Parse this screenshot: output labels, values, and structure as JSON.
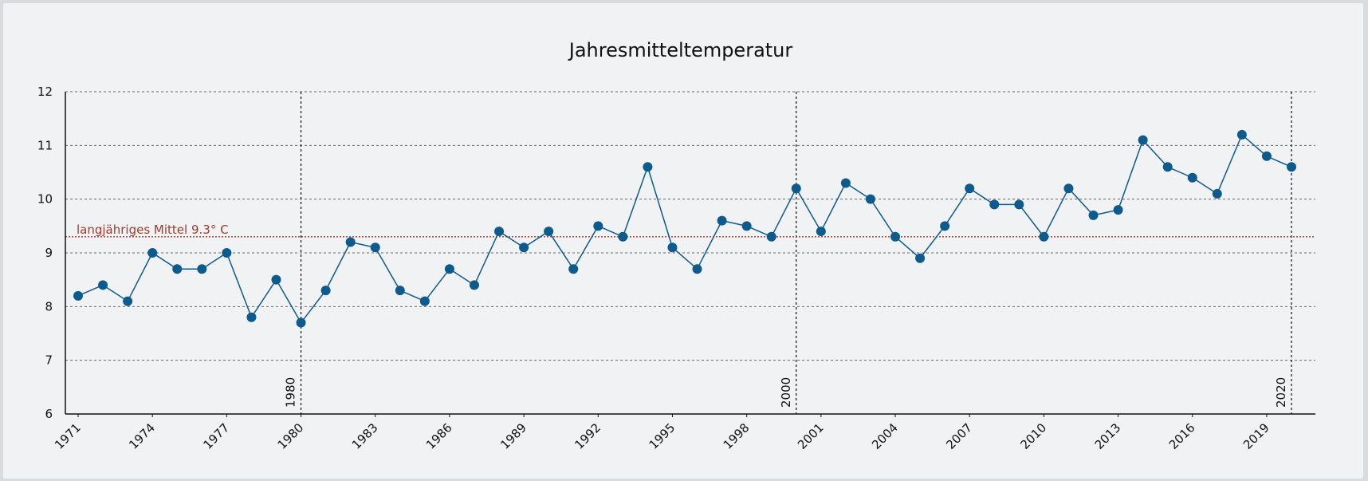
{
  "chart_data": {
    "type": "line",
    "title": "Jahresmitteltemperatur",
    "xlabel": "",
    "ylabel": "",
    "ylim": [
      6,
      12
    ],
    "yticks": [
      6,
      7,
      8,
      9,
      10,
      11,
      12
    ],
    "xlim": [
      1971,
      2020
    ],
    "xticks": [
      1971,
      1974,
      1977,
      1980,
      1983,
      1986,
      1989,
      1992,
      1995,
      1998,
      2001,
      2004,
      2007,
      2010,
      2013,
      2016,
      2019
    ],
    "grid": true,
    "x": [
      1971,
      1972,
      1973,
      1974,
      1975,
      1976,
      1977,
      1978,
      1979,
      1980,
      1981,
      1982,
      1983,
      1984,
      1985,
      1986,
      1987,
      1988,
      1989,
      1990,
      1991,
      1992,
      1993,
      1994,
      1995,
      1996,
      1997,
      1998,
      1999,
      2000,
      2001,
      2002,
      2003,
      2004,
      2005,
      2006,
      2007,
      2008,
      2009,
      2010,
      2011,
      2012,
      2013,
      2014,
      2015,
      2016,
      2017,
      2018,
      2019,
      2020
    ],
    "series": [
      {
        "values": [
          8.2,
          8.4,
          8.1,
          9.0,
          8.7,
          8.7,
          9.0,
          7.8,
          8.5,
          7.7,
          8.3,
          9.2,
          9.1,
          8.3,
          8.1,
          8.7,
          8.4,
          9.4,
          9.1,
          9.4,
          8.7,
          9.5,
          9.3,
          10.6,
          9.1,
          8.7,
          9.6,
          9.5,
          9.3,
          10.2,
          9.4,
          10.3,
          10.0,
          9.3,
          8.9,
          9.5,
          10.2,
          9.9,
          9.9,
          9.3,
          10.2,
          9.7,
          9.8,
          11.1,
          10.6,
          10.4,
          10.1,
          11.2,
          10.8,
          10.6
        ],
        "color": "#0d5b8d"
      }
    ],
    "reference_line": {
      "value": 9.3,
      "label": "langjähriges Mittel 9.3° C",
      "color": "#a33a2a"
    },
    "vertical_markers": [
      {
        "x": 1980,
        "label": "1980"
      },
      {
        "x": 2000,
        "label": "2000"
      },
      {
        "x": 2020,
        "label": "2020"
      }
    ]
  }
}
